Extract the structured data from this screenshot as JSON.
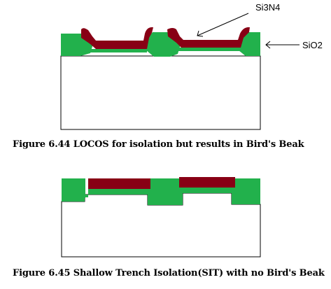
{
  "figures": [
    {
      "caption": "Figure 6.44 LOCOS for isolation but results in Bird's Beak",
      "labels": {
        "nitride": "Si3N4",
        "oxide": "SiO2"
      }
    },
    {
      "caption": "Figure 6.45 Shallow Trench Isolation(SIT) with no Bird's Beak"
    }
  ],
  "colors": {
    "oxide_green": "#22b14c",
    "nitride_maroon": "#880015",
    "substrate_fill": "#ffffff",
    "outline": "#000000"
  }
}
